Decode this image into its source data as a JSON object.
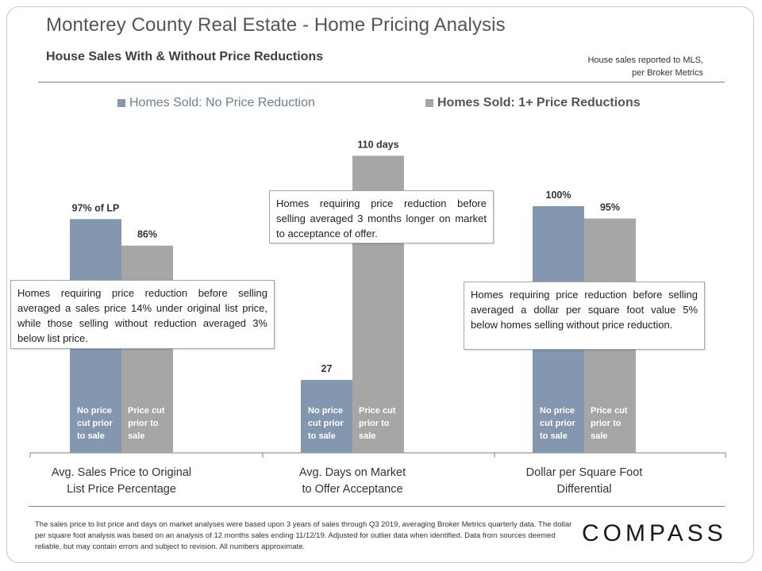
{
  "header": {
    "title": "Monterey County Real Estate - Home Pricing Analysis",
    "subtitle": "House Sales With & Without Price Reductions",
    "source_note": "House sales reported to MLS, per Broker Metrics"
  },
  "legend": [
    {
      "label": "Homes Sold: No Price Reduction",
      "color": "#8497b0"
    },
    {
      "label": "Homes Sold: 1+ Price Reductions",
      "color": "#a6a6a6"
    }
  ],
  "chart_data": {
    "type": "bar",
    "grid": false,
    "legend_position": "top",
    "categories": [
      "Avg. Sales Price to Original List Price Percentage",
      "Avg. Days on Market to Offer Acceptance",
      "Dollar per Square Foot Differential"
    ],
    "groups": [
      {
        "category_lines": [
          "Avg. Sales Price to Original",
          "List Price Percentage"
        ],
        "bars": [
          {
            "series": "No Price Reduction",
            "value": 97,
            "unit": "% of LP",
            "data_label": "97% of LP",
            "inner_label": [
              "No price",
              "cut prior",
              "to sale"
            ]
          },
          {
            "series": "1+ Price Reductions",
            "value": 86,
            "unit": "%",
            "data_label": "86%",
            "inner_label": [
              "Price cut",
              "prior to",
              "sale"
            ]
          }
        ],
        "ylim": [
          0,
          130
        ]
      },
      {
        "category_lines": [
          "Avg. Days on Market",
          "to Offer Acceptance"
        ],
        "bars": [
          {
            "series": "No Price Reduction",
            "value": 27,
            "unit": "days",
            "data_label": "27",
            "inner_label": [
              "No price",
              "cut prior",
              "to sale"
            ]
          },
          {
            "series": "1+ Price Reductions",
            "value": 110,
            "unit": "days",
            "data_label": "110 days",
            "inner_label": [
              "Price cut",
              "prior to",
              "sale"
            ]
          }
        ],
        "ylim": [
          0,
          116
        ]
      },
      {
        "category_lines": [
          "Dollar per Square Foot",
          "Differential"
        ],
        "bars": [
          {
            "series": "No Price Reduction",
            "value": 100,
            "unit": "%",
            "data_label": "100%",
            "inner_label": [
              "No price",
              "cut prior",
              "to sale"
            ]
          },
          {
            "series": "1+ Price Reductions",
            "value": 95,
            "unit": "%",
            "data_label": "95%",
            "inner_label": [
              "Price cut",
              "prior to",
              "sale"
            ]
          }
        ],
        "ylim": [
          0,
          127
        ]
      }
    ]
  },
  "callouts": [
    "Homes requiring price reduction before selling averaged a sales price 14% under original list price, while those selling without reduction averaged 3% below list price.",
    "Homes requiring price reduction before selling averaged 3 months longer on market to acceptance of offer.",
    "Homes requiring price reduction before selling averaged a dollar per square foot value 5% below homes selling without price reduction."
  ],
  "footnote": "The sales price to list price and days on market analyses were based upon 3 years of sales through Q3 2019, averaging Broker Metrics quarterly data. The dollar per square foot analysis was based on an analysis of 12 months sales ending 11/12/19. Adjusted for outlier data when identified. Data from sources deemed reliable, but may contain errors and subject to revision. All numbers approximate.",
  "brand": {
    "logo_text": "COMPASS"
  }
}
